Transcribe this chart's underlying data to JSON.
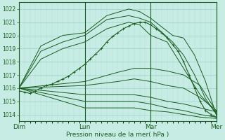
{
  "xlabel": "Pression niveau de la mer( hPa )",
  "ylim": [
    1013.5,
    1022.5
  ],
  "xlim": [
    0,
    72
  ],
  "yticks": [
    1014,
    1015,
    1016,
    1017,
    1018,
    1019,
    1020,
    1021,
    1022
  ],
  "xtick_positions": [
    0,
    24,
    48,
    72
  ],
  "xtick_labels": [
    "Dim",
    "Lun",
    "Mar",
    "Mer"
  ],
  "bg_color": "#c6ece4",
  "grid_major_color": "#9ed4cc",
  "grid_minor_color": "#b4e0d8",
  "line_color": "#1a5c20",
  "lines": [
    {
      "points": [
        [
          0,
          1016.0
        ],
        [
          8,
          1019.2
        ],
        [
          16,
          1020.0
        ],
        [
          24,
          1020.2
        ],
        [
          32,
          1021.5
        ],
        [
          40,
          1022.0
        ],
        [
          44,
          1021.8
        ],
        [
          48,
          1021.3
        ],
        [
          56,
          1020.0
        ],
        [
          60,
          1019.8
        ],
        [
          64,
          1018.5
        ],
        [
          68,
          1016.5
        ],
        [
          72,
          1013.9
        ]
      ]
    },
    {
      "points": [
        [
          0,
          1016.0
        ],
        [
          8,
          1018.8
        ],
        [
          16,
          1019.5
        ],
        [
          24,
          1020.0
        ],
        [
          32,
          1021.2
        ],
        [
          40,
          1021.5
        ],
        [
          44,
          1021.3
        ],
        [
          48,
          1021.0
        ],
        [
          56,
          1019.5
        ],
        [
          60,
          1018.5
        ],
        [
          64,
          1017.0
        ],
        [
          68,
          1015.2
        ],
        [
          72,
          1014.0
        ]
      ]
    },
    {
      "points": [
        [
          0,
          1016.0
        ],
        [
          8,
          1018.2
        ],
        [
          16,
          1019.0
        ],
        [
          24,
          1019.5
        ],
        [
          32,
          1020.5
        ],
        [
          40,
          1021.0
        ],
        [
          44,
          1020.8
        ],
        [
          48,
          1020.0
        ],
        [
          54,
          1019.5
        ],
        [
          60,
          1017.5
        ],
        [
          66,
          1015.5
        ],
        [
          72,
          1014.1
        ]
      ]
    },
    {
      "points": [
        [
          0,
          1016.0
        ],
        [
          24,
          1016.5
        ],
        [
          36,
          1017.2
        ],
        [
          42,
          1017.5
        ],
        [
          48,
          1017.5
        ],
        [
          54,
          1017.3
        ],
        [
          60,
          1017.0
        ],
        [
          66,
          1016.2
        ],
        [
          72,
          1014.2
        ]
      ]
    },
    {
      "points": [
        [
          0,
          1016.0
        ],
        [
          24,
          1016.2
        ],
        [
          36,
          1016.5
        ],
        [
          42,
          1016.7
        ],
        [
          48,
          1016.5
        ],
        [
          54,
          1016.2
        ],
        [
          60,
          1016.0
        ],
        [
          66,
          1015.3
        ],
        [
          72,
          1014.3
        ]
      ]
    },
    {
      "points": [
        [
          0,
          1016.0
        ],
        [
          24,
          1015.5
        ],
        [
          36,
          1015.5
        ],
        [
          42,
          1015.5
        ],
        [
          48,
          1015.3
        ],
        [
          54,
          1015.0
        ],
        [
          60,
          1014.8
        ],
        [
          66,
          1014.5
        ],
        [
          72,
          1014.2
        ]
      ]
    },
    {
      "points": [
        [
          0,
          1016.0
        ],
        [
          24,
          1015.0
        ],
        [
          36,
          1015.0
        ],
        [
          42,
          1015.0
        ],
        [
          48,
          1014.8
        ],
        [
          54,
          1014.5
        ],
        [
          60,
          1014.3
        ],
        [
          66,
          1014.0
        ],
        [
          72,
          1013.8
        ]
      ]
    },
    {
      "points": [
        [
          0,
          1016.0
        ],
        [
          24,
          1014.5
        ],
        [
          36,
          1014.5
        ],
        [
          42,
          1014.5
        ],
        [
          48,
          1014.3
        ],
        [
          54,
          1014.2
        ],
        [
          60,
          1014.0
        ],
        [
          66,
          1013.8
        ],
        [
          72,
          1013.7
        ]
      ]
    }
  ],
  "dense_line": {
    "points": [
      [
        0,
        1015.8
      ],
      [
        2,
        1015.7
      ],
      [
        4,
        1015.6
      ],
      [
        6,
        1015.8
      ],
      [
        8,
        1016.0
      ],
      [
        10,
        1016.2
      ],
      [
        12,
        1016.3
      ],
      [
        14,
        1016.5
      ],
      [
        16,
        1016.7
      ],
      [
        18,
        1016.9
      ],
      [
        20,
        1017.2
      ],
      [
        22,
        1017.5
      ],
      [
        24,
        1017.8
      ],
      [
        26,
        1018.2
      ],
      [
        28,
        1018.6
      ],
      [
        30,
        1019.0
      ],
      [
        32,
        1019.5
      ],
      [
        34,
        1019.9
      ],
      [
        36,
        1020.2
      ],
      [
        38,
        1020.5
      ],
      [
        40,
        1020.7
      ],
      [
        42,
        1020.9
      ],
      [
        44,
        1021.0
      ],
      [
        46,
        1021.0
      ],
      [
        48,
        1020.8
      ],
      [
        50,
        1020.5
      ],
      [
        52,
        1020.2
      ],
      [
        54,
        1019.8
      ],
      [
        56,
        1019.3
      ],
      [
        58,
        1018.8
      ],
      [
        60,
        1018.0
      ],
      [
        62,
        1017.0
      ],
      [
        64,
        1016.0
      ],
      [
        66,
        1015.0
      ],
      [
        68,
        1014.3
      ],
      [
        70,
        1014.0
      ],
      [
        72,
        1013.8
      ]
    ]
  }
}
